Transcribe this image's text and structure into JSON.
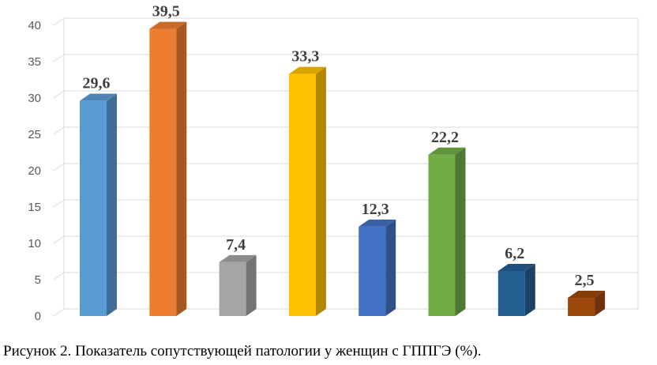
{
  "caption": "Рисунок 2. Показатель сопутствующей патологии у женщин с ГППГЭ (%).",
  "chart_data": {
    "type": "bar",
    "style": "3d-column",
    "grid": true,
    "legend": "none",
    "ylim": [
      0,
      40
    ],
    "yticks": [
      0,
      5,
      10,
      15,
      20,
      25,
      30,
      35,
      40
    ],
    "categories": [
      "",
      "",
      "",
      "",
      "",
      "",
      "",
      ""
    ],
    "values": [
      29.6,
      39.5,
      7.4,
      33.3,
      12.3,
      22.2,
      6.2,
      2.5
    ],
    "labels": [
      "29,6",
      "39,5",
      "7,4",
      "33,3",
      "12,3",
      "22,2",
      "6,2",
      "2,5"
    ],
    "colors": [
      "#5b9bd5",
      "#ed7d31",
      "#a5a5a5",
      "#ffc000",
      "#4472c4",
      "#70ad47",
      "#255e91",
      "#9e480e"
    ]
  }
}
